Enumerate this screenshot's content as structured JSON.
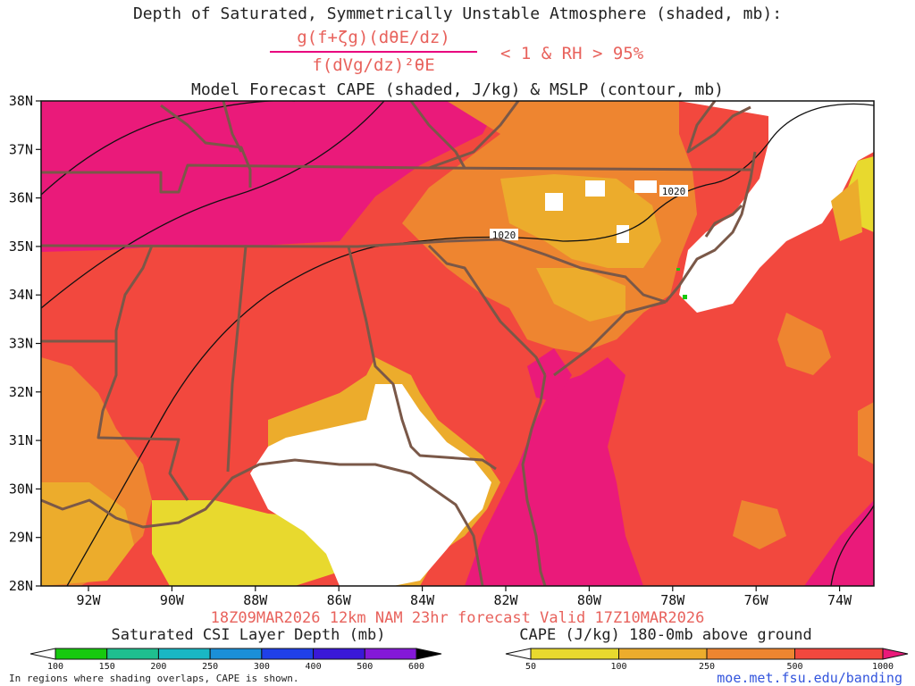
{
  "header": {
    "title_line1": "Depth of Saturated, Symmetrically Unstable Atmosphere (shaded, mb):",
    "formula_numerator": "g(f+ζg)(dθE/dz)",
    "formula_denominator": "f(dVg/dz)²θE",
    "formula_condition": "< 1 & RH > 95%",
    "title_line3": "Model Forecast CAPE (shaded, J/kg) & MSLP (contour, mb)"
  },
  "map": {
    "lat_labels": [
      "38N",
      "37N",
      "36N",
      "35N",
      "34N",
      "33N",
      "32N",
      "31N",
      "30N",
      "29N",
      "28N"
    ],
    "lon_labels": [
      "92W",
      "90W",
      "88W",
      "86W",
      "84W",
      "82W",
      "80W",
      "78W",
      "76W",
      "74W"
    ],
    "isobar_labels": [
      "1020",
      "1020"
    ]
  },
  "footer": {
    "valid_line": "18Z09MAR2026 12km NAM 23hr forecast Valid 17Z10MAR2026",
    "csi_title": "Saturated CSI Layer Depth (mb)",
    "csi_ticks": [
      "100",
      "150",
      "200",
      "250",
      "300",
      "400",
      "500",
      "600"
    ],
    "csi_colors": [
      "#ffffff",
      "#17c90f",
      "#1fbf8f",
      "#19b7c4",
      "#1b8fd8",
      "#2040e8",
      "#3a18d8",
      "#8418d8",
      "#000000"
    ],
    "cape_title": "CAPE (J/kg) 180-0mb above ground",
    "cape_ticks": [
      "50",
      "100",
      "250",
      "500",
      "1000"
    ],
    "cape_colors": [
      "#ffffff",
      "#e8d92e",
      "#ecac2c",
      "#ee8530",
      "#f2483e",
      "#ea1a7a"
    ],
    "note": "In regions where shading overlaps, CAPE is shown.",
    "url": "moe.met.fsu.edu/banding"
  }
}
